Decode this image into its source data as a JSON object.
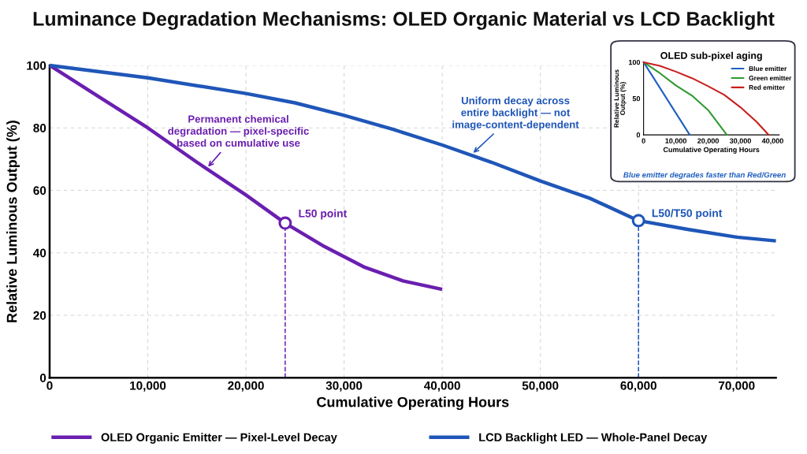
{
  "chart_data": [
    {
      "type": "line",
      "title": "Luminance Degradation Mechanisms: OLED Organic Material vs LCD Backlight",
      "xlabel": "Cumulative Operating Hours",
      "ylabel": "Relative Luminous Output (%)",
      "xlim": [
        0,
        74000
      ],
      "ylim": [
        0,
        100
      ],
      "xticks": [
        0,
        {
          "value": 10000,
          "label": "10,000"
        },
        {
          "value": 20000,
          "label": "20,000"
        },
        {
          "value": 30000,
          "label": "30,000"
        },
        {
          "value": 40000,
          "label": "40,000"
        },
        {
          "value": 50000,
          "label": "50,000"
        },
        {
          "value": 60000,
          "label": "60,000"
        },
        {
          "value": 70000,
          "label": "70,000"
        }
      ],
      "yticks": [
        0,
        20,
        40,
        60,
        80,
        100
      ],
      "grid": true,
      "legend": "bottom",
      "marker": "none",
      "line_style": "solid",
      "series": [
        {
          "name": "OLED Organic Emitter — Pixel-Level Decay",
          "color": "#6a1fb0",
          "x": [
            0,
            5000,
            10000,
            15000,
            20000,
            24000,
            28000,
            32000,
            36000,
            40000
          ],
          "values": [
            100,
            90,
            80,
            69,
            58.5,
            49.5,
            42,
            35.5,
            31,
            28.3
          ]
        },
        {
          "name": "LCD Backlight LED — Whole-Panel Decay",
          "color": "#1f56b8",
          "x": [
            0,
            10000,
            20000,
            25000,
            30000,
            35000,
            40000,
            45000,
            50000,
            55000,
            60000,
            65000,
            70000,
            74000
          ],
          "values": [
            100,
            96,
            91,
            88,
            84,
            79.5,
            74.5,
            69,
            63,
            57.5,
            50.3,
            47.5,
            45,
            43.8
          ]
        }
      ],
      "ref_lines": [
        {
          "axis": "x",
          "value": 24000,
          "color": "#6a1fb0",
          "line_style": "dashed"
        },
        {
          "axis": "x",
          "value": 60000,
          "color": "#1f56b8",
          "line_style": "dashed"
        }
      ],
      "annotations": [
        {
          "text": "Permanent chemical\ndegradation — pixel-specific\nbased on cumulative use",
          "x": 16000,
          "y": 67
        },
        {
          "text": "Uniform decay across\nentire backlight — not\nimage-content-dependent",
          "x": 43000,
          "y": 71.5
        },
        {
          "text": "L50 point",
          "x": 24000,
          "y": 49.5
        },
        {
          "text": "L50/T50 point",
          "x": 60000,
          "y": 50.3
        }
      ]
    },
    {
      "type": "line",
      "title": "OLED sub-pixel aging",
      "xlabel": "Cumulative Operating Hours",
      "ylabel": "Relative Luminous\nOutput (%)",
      "xlim": [
        0,
        42000
      ],
      "ylim": [
        0,
        100
      ],
      "xticks": [
        0,
        {
          "value": 10000,
          "label": "10,000"
        },
        {
          "value": 20000,
          "label": "20,000"
        },
        {
          "value": 30000,
          "label": "30,000"
        },
        {
          "value": 40000,
          "label": "40,000"
        }
      ],
      "yticks": [
        0,
        50,
        100
      ],
      "legend": "top right",
      "marker": "none",
      "line_style": "solid",
      "series": [
        {
          "name": "Blue emitter",
          "color": "#1f5fbf",
          "x": [
            0,
            14300
          ],
          "values": [
            100,
            0
          ]
        },
        {
          "name": "Green emitter",
          "color": "#2e9a2e",
          "x": [
            0,
            5000,
            10000,
            15000,
            20000,
            25800
          ],
          "values": [
            100,
            85,
            68,
            54,
            34,
            0
          ]
        },
        {
          "name": "Red emitter",
          "color": "#c8201e",
          "x": [
            0,
            5000,
            10000,
            15000,
            20000,
            25000,
            30000,
            35000,
            38700
          ],
          "values": [
            100,
            95,
            87,
            78,
            67,
            55,
            38,
            18,
            0
          ]
        }
      ],
      "annotations": [
        "Blue emitter degrades faster than Red/Green"
      ]
    }
  ]
}
